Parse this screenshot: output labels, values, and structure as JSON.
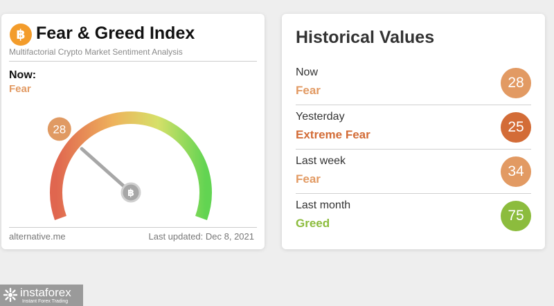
{
  "left_card": {
    "logo_glyph": "฿",
    "title": "Fear & Greed Index",
    "subtitle": "Multifactorial Crypto Market Sentiment Analysis",
    "now_label": "Now:",
    "now_classification": "Fear",
    "gauge": {
      "value": 28,
      "min": 0,
      "max": 100,
      "badge_color": "#e09a63",
      "hub_glyph": "฿",
      "gradient_colors": [
        "#e0664f",
        "#eeb25c",
        "#d6e069",
        "#62d452"
      ]
    },
    "footer_source": "alternative.me",
    "footer_updated": "Last updated: Dec 8, 2021"
  },
  "right_card": {
    "title": "Historical Values",
    "rows": [
      {
        "period": "Now",
        "classification": "Fear",
        "value": "28",
        "color": "#e29a63"
      },
      {
        "period": "Yesterday",
        "classification": "Extreme Fear",
        "value": "25",
        "color": "#d36c37"
      },
      {
        "period": "Last week",
        "classification": "Fear",
        "value": "34",
        "color": "#e29a63"
      },
      {
        "period": "Last month",
        "classification": "Greed",
        "value": "75",
        "color": "#8cbc3d"
      }
    ]
  },
  "watermark": {
    "brand": "instaforex",
    "tagline": "Instant Forex Trading"
  }
}
